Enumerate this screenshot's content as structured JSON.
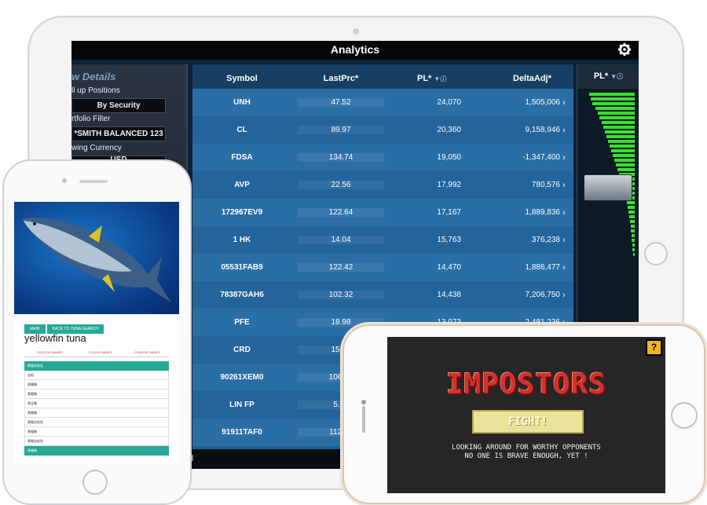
{
  "analytics": {
    "title": "Analytics",
    "left_panel": {
      "heading": "w Details",
      "roll_up_label": "ll up Positions",
      "by_security": "By Security",
      "portfolio_filter_label": "rtfolio Filter",
      "portfolio": "*SMITH BALANCED 123",
      "viewing_currency_label": "wing Currency",
      "currency": "USD"
    },
    "table": {
      "columns": [
        "Symbol",
        "LastPrc*",
        "PL*",
        "DeltaAdj*"
      ],
      "rows": [
        {
          "symbol": "UNH",
          "last": "47.52",
          "pl": "24,070",
          "delta": "1,505,006"
        },
        {
          "symbol": "CL",
          "last": "89.97",
          "pl": "20,360",
          "delta": "9,158,946"
        },
        {
          "symbol": "FDSA",
          "last": "134.74",
          "pl": "19,050",
          "delta": "-1,347,400"
        },
        {
          "symbol": "AVP",
          "last": "22.56",
          "pl": "17,992",
          "delta": "780,576"
        },
        {
          "symbol": "172967EV9",
          "last": "122.64",
          "pl": "17,167",
          "delta": "1,889,836"
        },
        {
          "symbol": "1 HK",
          "last": "14.04",
          "pl": "15,763",
          "delta": "376,238"
        },
        {
          "symbol": "05531FAB9",
          "last": "122.42",
          "pl": "14,470",
          "delta": "1,886,477"
        },
        {
          "symbol": "78387GAH6",
          "last": "102.32",
          "pl": "14,438",
          "delta": "7,206,750"
        },
        {
          "symbol": "PFE",
          "last": "18.98",
          "pl": "13,073",
          "delta": "2,481,236"
        },
        {
          "symbol": "CRD",
          "last": "15.00",
          "pl": "",
          "delta": ""
        },
        {
          "symbol": "90261XEM0",
          "last": "106.29",
          "pl": "",
          "delta": ""
        },
        {
          "symbol": "LIN FP",
          "last": "5.33",
          "pl": "",
          "delta": ""
        },
        {
          "symbol": "91911TAF0",
          "last": "112.95",
          "pl": "",
          "delta": ""
        }
      ]
    },
    "right_panel": {
      "header": "PL*"
    },
    "bottom_fragment": "d"
  },
  "tuna_app": {
    "nav_buttons": [
      "MAIN",
      "BACK TO TUNA SEARCH"
    ],
    "fish_name": "yellowfin tuna",
    "tabs": [
      "ENGLISH NAMES",
      "POLISH NAMES",
      "CHINESE NAMES"
    ],
    "list": [
      "黄鳍金枪鱼",
      "金枪",
      "黄鳍鲔",
      "黄鳍鲔",
      "黄金鲔",
      "黄鳍鲔",
      "黄鳍金枪鱼",
      "黄鳍鲔",
      "黄鳍金枪鱼",
      "黄鳍鲔"
    ]
  },
  "game": {
    "title": "IMPOSTORS",
    "button": "FIGHT!",
    "message_line1": "LOOKING AROUND FOR WORTHY OPPONENTS",
    "message_line2": "NO ONE IS BRAVE ENOUGH, YET !",
    "help_glyph": "?"
  }
}
